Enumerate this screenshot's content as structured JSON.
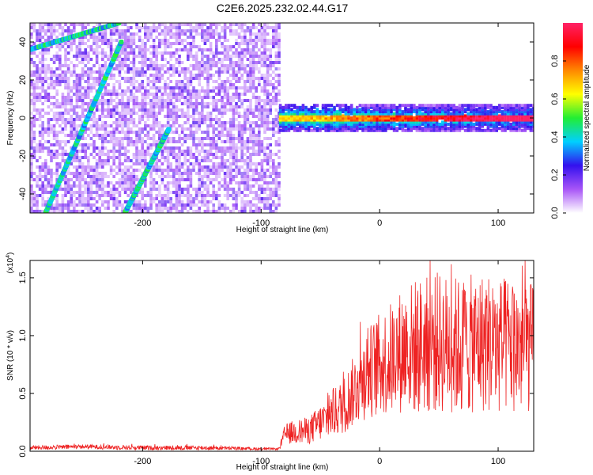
{
  "chart_data": [
    {
      "type": "heatmap",
      "title": "C2E6.2025.232.02.44.G17",
      "xlabel": "Height of straight line (km)",
      "ylabel": "Frequency (Hz)",
      "xlim": [
        -295,
        130
      ],
      "ylim": [
        -50,
        50
      ],
      "xticks": [
        -200,
        -100,
        0,
        100
      ],
      "xtick_labels": [
        "-200",
        "-100",
        "0",
        "100"
      ],
      "yticks": [
        -40,
        -20,
        0,
        20,
        40
      ],
      "ytick_labels": [
        "-40",
        "-20",
        "0",
        "20",
        "40"
      ],
      "noise_region_x": [
        -295,
        -85
      ],
      "tracks": [
        {
          "name": "steep ridge 1",
          "from": [
            -295,
            36
          ],
          "to": [
            -220,
            50
          ]
        },
        {
          "name": "steep ridge 2",
          "from": [
            -282,
            -50
          ],
          "to": [
            -218,
            40
          ]
        },
        {
          "name": "steep ridge 3",
          "from": [
            -215,
            -50
          ],
          "to": [
            -178,
            -6
          ]
        },
        {
          "name": "flat line",
          "from": [
            -85,
            0
          ],
          "to": [
            130,
            0
          ]
        }
      ],
      "colorbar": {
        "label": "Normalized spectral amplitude",
        "range": [
          0,
          1
        ],
        "ticks": [
          0.0,
          0.2,
          0.4,
          0.6,
          0.8
        ],
        "tick_labels": [
          "0.0",
          "0.2",
          "0.4",
          "0.6",
          "0.8"
        ],
        "colors": [
          "#ffffff",
          "#a855f7",
          "#3311ee",
          "#00d0ff",
          "#22ee33",
          "#ffff00",
          "#ff8800",
          "#ff0000",
          "#ff2266"
        ]
      }
    },
    {
      "type": "line",
      "xlabel": "Height of straight line (km)",
      "ylabel": "SNR (10 * v/v)",
      "y_multiplier": "(x10",
      "y_multiplier_exp": "4",
      "y_multiplier_close": ")",
      "xlim": [
        -295,
        130
      ],
      "ylim": [
        0,
        1.65
      ],
      "xticks": [
        -200,
        -100,
        0,
        100
      ],
      "xtick_labels": [
        "-200",
        "-100",
        "0",
        "100"
      ],
      "yticks": [
        0.0,
        0.5,
        1.0,
        1.5
      ],
      "ytick_labels": [
        "0.0",
        "0.5",
        "1.0",
        "1.5"
      ],
      "color": "#ee2222",
      "envelope_x": [
        -295,
        -250,
        -200,
        -150,
        -100,
        -85,
        -80,
        -75,
        -60,
        -45,
        -30,
        -20,
        -10,
        0,
        10,
        20,
        30,
        40,
        50,
        60,
        70,
        80,
        90,
        100,
        110,
        120,
        130
      ],
      "envelope_y": [
        0.03,
        0.04,
        0.03,
        0.03,
        0.02,
        0.02,
        0.15,
        0.16,
        0.18,
        0.28,
        0.4,
        0.55,
        0.68,
        0.75,
        0.8,
        0.88,
        0.9,
        0.92,
        0.94,
        0.92,
        0.9,
        0.93,
        0.95,
        0.9,
        0.92,
        0.9,
        0.9
      ],
      "spread_y": [
        0.02,
        0.02,
        0.02,
        0.02,
        0.01,
        0.01,
        0.08,
        0.1,
        0.12,
        0.18,
        0.25,
        0.32,
        0.4,
        0.45,
        0.5,
        0.55,
        0.6,
        0.6,
        0.62,
        0.6,
        0.62,
        0.6,
        0.62,
        0.6,
        0.6,
        0.6,
        0.55
      ]
    }
  ]
}
